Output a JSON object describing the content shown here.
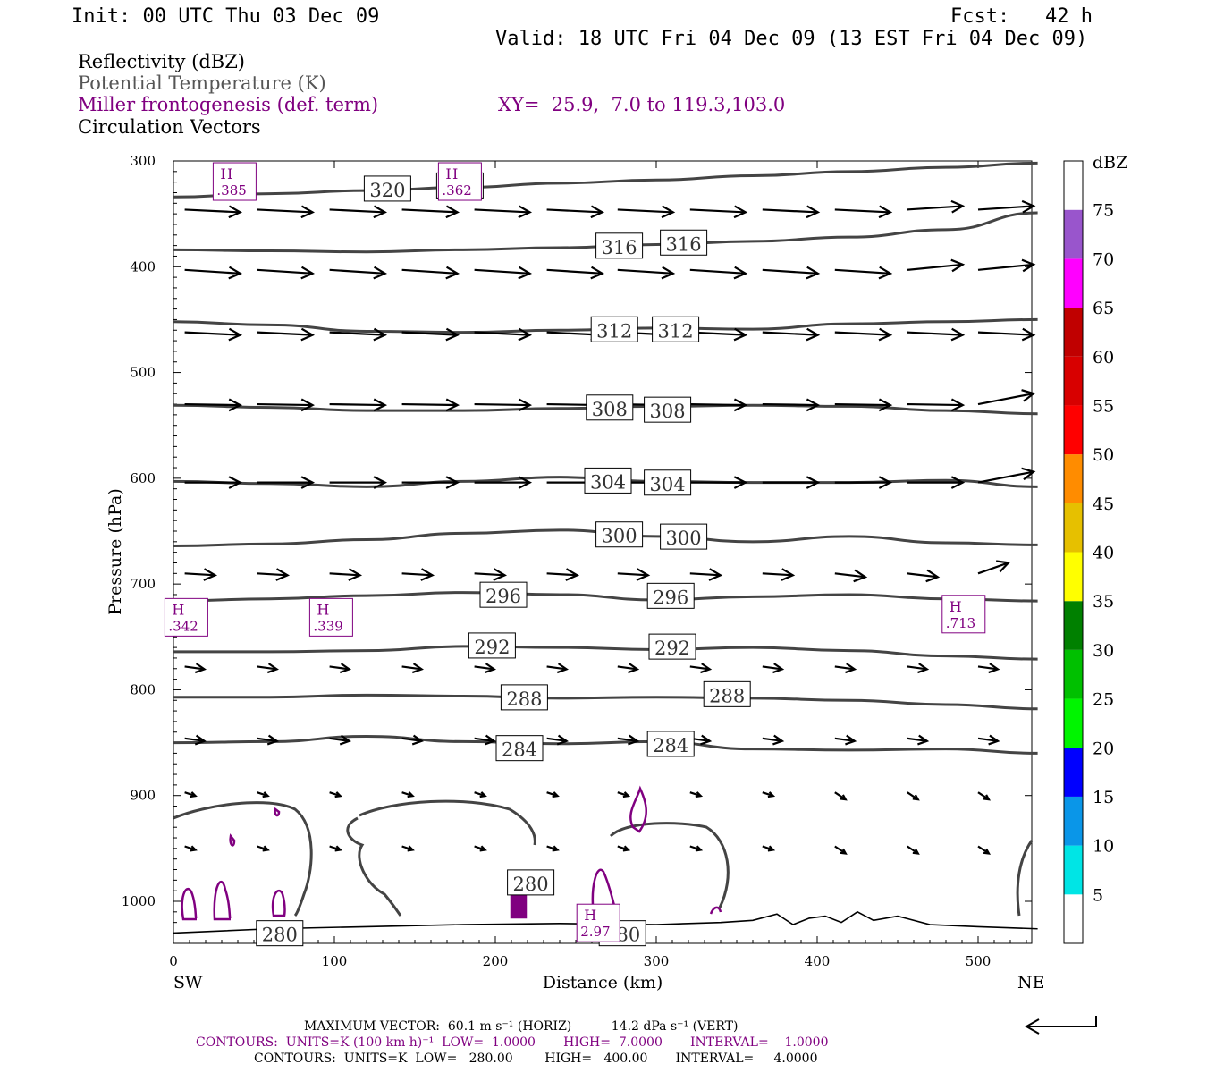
{
  "header": {
    "init": "Init: 00 UTC Thu 03 Dec 09",
    "fcst": "Fcst:   42 h",
    "valid": "Valid: 18 UTC Fri 04 Dec 09 (13 EST Fri 04 Dec 09)"
  },
  "fields": {
    "reflectivity": "Reflectivity (dBZ)",
    "theta": "Potential Temperature (K)",
    "miller": "Miller frontogenesis (def. term)",
    "xy": "XY=  25.9,  7.0 to 119.3,103.0",
    "circulation": "Circulation Vectors"
  },
  "colors": {
    "theta": "#444444",
    "miller": "#800080",
    "vector": "#000000"
  },
  "axes": {
    "ylabel": "Pressure (hPa)",
    "xlabel": "Distance (km)",
    "left_end": "SW",
    "right_end": "NE"
  },
  "colorbar": {
    "unit": "dBZ",
    "levels": [
      "5",
      "10",
      "15",
      "20",
      "25",
      "30",
      "35",
      "40",
      "45",
      "50",
      "55",
      "60",
      "65",
      "70",
      "75"
    ],
    "colors": [
      "#ffffff",
      "#00e5e5",
      "#0a96e8",
      "#0000ff",
      "#00f500",
      "#00c000",
      "#008000",
      "#ffff00",
      "#e6c000",
      "#ff8c00",
      "#ff0000",
      "#d80000",
      "#c00000",
      "#ff00ff",
      "#9955cc",
      "#ffffff"
    ]
  },
  "footer": {
    "max_vector": "MAXIMUM VECTOR:  60.1 m s⁻¹ (HORIZ)          14.2 dPa s⁻¹ (VERT)",
    "contours_miller": "CONTOURS:  UNITS=K (100 km h)⁻¹  LOW=  1.0000       HIGH=  7.0000       INTERVAL=    1.0000",
    "contours_theta": "CONTOURS:  UNITS=K  LOW=   280.00        HIGH=   400.00       INTERVAL=     4.0000"
  },
  "chart_data": {
    "type": "cross-section",
    "x_ticks": [
      0,
      100,
      200,
      300,
      400,
      500
    ],
    "y_ticks": [
      300,
      400,
      500,
      600,
      700,
      800,
      900,
      1000
    ],
    "xlim": [
      0,
      537
    ],
    "ylim": [
      1040,
      300
    ],
    "theta_contours": [
      {
        "label": "320",
        "x": [
          0,
          60,
          120,
          180,
          240,
          300,
          360,
          420,
          480,
          537
        ],
        "p": [
          334,
          331,
          328,
          325,
          321,
          318,
          314,
          310,
          306,
          302
        ],
        "label_at": [
          [
            133,
            327
          ],
          [
            178,
            324
          ]
        ]
      },
      {
        "label": "316",
        "x": [
          0,
          60,
          120,
          180,
          240,
          300,
          360,
          420,
          480,
          537
        ],
        "p": [
          384,
          385,
          386,
          384,
          382,
          379,
          376,
          372,
          365,
          349
        ],
        "label_at": [
          [
            277,
            381
          ],
          [
            317,
            378
          ]
        ]
      },
      {
        "label": "312",
        "x": [
          0,
          60,
          120,
          180,
          240,
          300,
          360,
          420,
          480,
          537
        ],
        "p": [
          452,
          455,
          461,
          462,
          460,
          458,
          459,
          454,
          452,
          450
        ],
        "label_at": [
          [
            274,
            460
          ],
          [
            312,
            460
          ]
        ]
      },
      {
        "label": "308",
        "x": [
          0,
          60,
          120,
          180,
          240,
          300,
          360,
          420,
          480,
          537
        ],
        "p": [
          531,
          533,
          536,
          536,
          534,
          532,
          531,
          532,
          536,
          539
        ],
        "label_at": [
          [
            271,
            534
          ],
          [
            307,
            536
          ]
        ]
      },
      {
        "label": "304",
        "x": [
          0,
          60,
          120,
          180,
          240,
          300,
          360,
          420,
          480,
          537
        ],
        "p": [
          603,
          605,
          608,
          603,
          599,
          603,
          604,
          604,
          602,
          608
        ],
        "label_at": [
          [
            270,
            603
          ],
          [
            307,
            605
          ]
        ]
      },
      {
        "label": "300",
        "x": [
          0,
          60,
          120,
          180,
          240,
          300,
          360,
          420,
          480,
          537
        ],
        "p": [
          664,
          662,
          658,
          652,
          649,
          655,
          660,
          655,
          661,
          663
        ],
        "label_at": [
          [
            277,
            654
          ],
          [
            317,
            656
          ]
        ]
      },
      {
        "label": "296",
        "x": [
          0,
          60,
          120,
          180,
          240,
          300,
          360,
          420,
          480,
          537
        ],
        "p": [
          716,
          714,
          711,
          708,
          710,
          715,
          712,
          710,
          714,
          716
        ],
        "label_at": [
          [
            205,
            711
          ],
          [
            309,
            712
          ]
        ]
      },
      {
        "label": "292",
        "x": [
          0,
          60,
          120,
          180,
          240,
          300,
          360,
          420,
          480,
          537
        ],
        "p": [
          764,
          764,
          763,
          759,
          760,
          762,
          760,
          763,
          768,
          771
        ],
        "label_at": [
          [
            198,
            759
          ],
          [
            310,
            760
          ]
        ]
      },
      {
        "label": "288",
        "x": [
          0,
          60,
          120,
          180,
          240,
          300,
          360,
          420,
          480,
          537
        ],
        "p": [
          807,
          807,
          805,
          806,
          808,
          807,
          808,
          810,
          814,
          818
        ],
        "label_at": [
          [
            218,
            808
          ],
          [
            344,
            805
          ]
        ]
      },
      {
        "label": "284",
        "x": [
          0,
          60,
          120,
          180,
          240,
          300,
          360,
          420,
          480,
          537
        ],
        "p": [
          850,
          849,
          844,
          849,
          851,
          849,
          856,
          857,
          856,
          860
        ],
        "label_at": [
          [
            215,
            856
          ],
          [
            309,
            852
          ]
        ]
      },
      {
        "label": "280",
        "label_at": [
          [
            66,
            1031
          ],
          [
            222,
            983
          ],
          [
            279,
            1031
          ]
        ]
      }
    ],
    "miller_maxima": [
      {
        "label": "H",
        "value": ".385",
        "x": 38,
        "p": 322
      },
      {
        "label": "H",
        "value": ".362",
        "x": 178,
        "p": 322
      },
      {
        "label": "H",
        "value": ".342",
        "x": 8,
        "p": 734
      },
      {
        "label": "H",
        "value": ".339",
        "x": 98,
        "p": 734
      },
      {
        "label": "H",
        "value": ".713",
        "x": 491,
        "p": 731
      },
      {
        "label": "H",
        "value": "2.97",
        "x": 264,
        "p": 1023
      }
    ],
    "vector_rows_hpa": [
      346,
      403,
      462,
      530,
      604,
      690,
      778,
      846,
      897,
      948
    ],
    "vector_x_km": [
      7,
      52,
      97,
      142,
      187,
      232,
      276,
      321,
      366,
      411,
      456,
      500
    ]
  }
}
